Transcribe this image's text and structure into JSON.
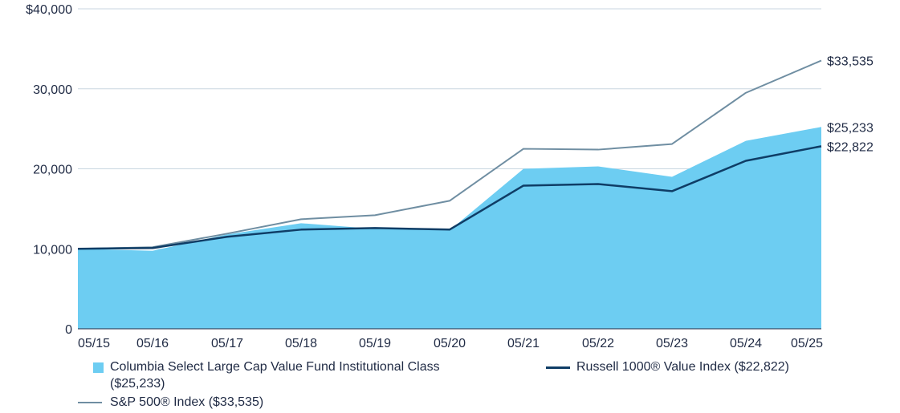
{
  "chart_data": {
    "type": "area",
    "categories": [
      "05/15",
      "05/16",
      "05/17",
      "05/18",
      "05/19",
      "05/20",
      "05/21",
      "05/22",
      "05/23",
      "05/24",
      "05/25"
    ],
    "ylim": [
      0,
      40000
    ],
    "yticks": [
      0,
      10000,
      20000,
      30000,
      40000
    ],
    "ytick_labels": [
      "0",
      "10,000",
      "20,000",
      "30,000",
      "$40,000"
    ],
    "series": [
      {
        "name": "Columbia Select Large Cap Value Fund Institutional Class ($25,233)",
        "style": "area",
        "color": "#6dcdf2",
        "values": [
          10000,
          9750,
          11800,
          13200,
          12500,
          12300,
          20000,
          20300,
          19000,
          23500,
          25233
        ],
        "end_label": "$25,233"
      },
      {
        "name": "Russell 1000® Value Index ($22,822)",
        "style": "line",
        "color": "#0f3d66",
        "values": [
          10000,
          10100,
          11500,
          12400,
          12600,
          12400,
          17900,
          18100,
          17200,
          21000,
          22822
        ],
        "end_label": "$22,822"
      },
      {
        "name": "S&P 500® Index ($33,535)",
        "style": "line",
        "color": "#6f8ea2",
        "values": [
          10000,
          10200,
          11900,
          13700,
          14200,
          16000,
          22500,
          22400,
          23100,
          29500,
          33535
        ],
        "end_label": "$33,535"
      }
    ]
  },
  "legend": {
    "fund_label": "Columbia Select Large Cap Value Fund Institutional Class ($25,233)",
    "russell_label": "Russell 1000® Value Index ($22,822)",
    "sp500_label": "S&P 500® Index ($33,535)"
  }
}
